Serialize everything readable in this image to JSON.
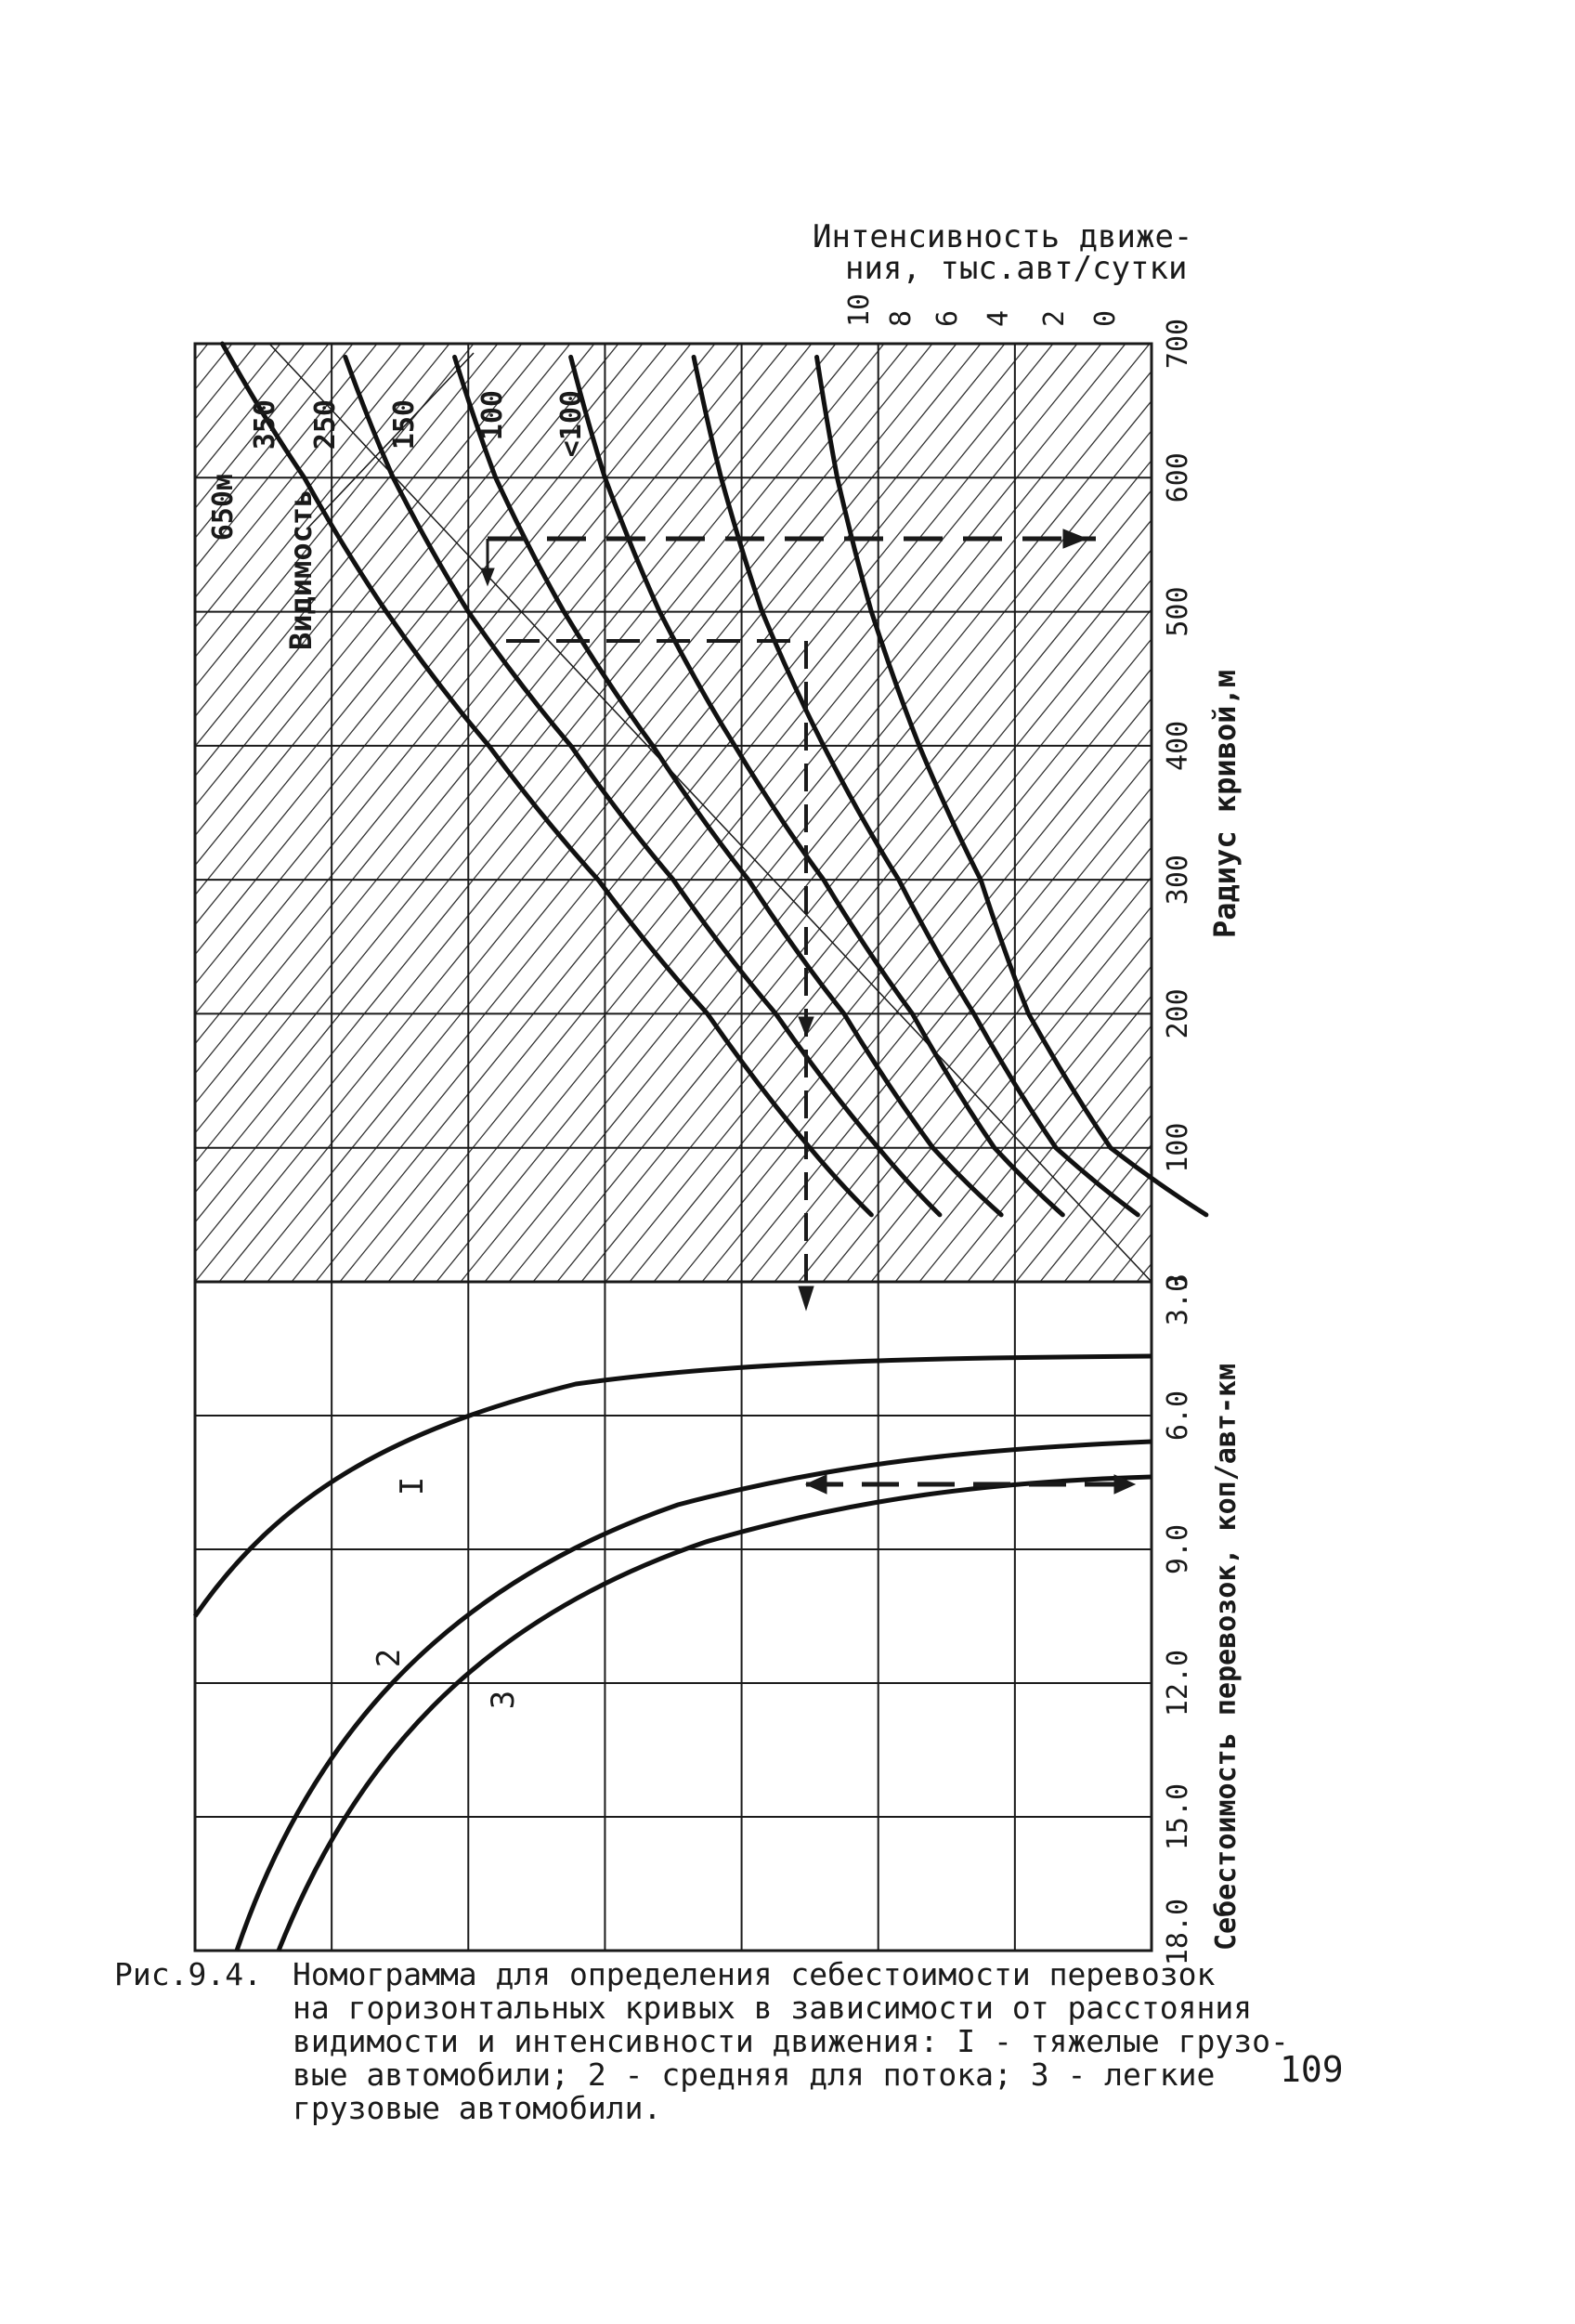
{
  "chart_data": [
    {
      "type": "line",
      "title": "",
      "right_axis_label": "Радиус кривой,м",
      "top_axis_label": "Интенсивность движе-\nния, тыс.авт/сутки",
      "radius_ticks": [
        700,
        600,
        500,
        400,
        300,
        200,
        100,
        3.0
      ],
      "intensity_ticks": [
        "10",
        "8",
        "6",
        "4",
        "2",
        "0"
      ],
      "visibility_label": "Видимость",
      "series": [
        {
          "name": "650м",
          "points": [
            [
              700,
              0.2
            ],
            [
              600,
              0.8
            ],
            [
              500,
              1.4
            ],
            [
              400,
              2.15
            ],
            [
              300,
              2.95
            ],
            [
              200,
              3.75
            ],
            [
              100,
              4.5
            ],
            [
              50,
              4.95
            ]
          ]
        },
        {
          "name": "350",
          "points": [
            [
              690,
              1.1
            ],
            [
              600,
              1.45
            ],
            [
              500,
              2.0
            ],
            [
              400,
              2.75
            ],
            [
              300,
              3.5
            ],
            [
              200,
              4.25
            ],
            [
              100,
              5.0
            ],
            [
              50,
              5.45
            ]
          ]
        },
        {
          "name": "250",
          "points": [
            [
              690,
              1.9
            ],
            [
              600,
              2.2
            ],
            [
              500,
              2.7
            ],
            [
              400,
              3.35
            ],
            [
              300,
              4.05
            ],
            [
              200,
              4.75
            ],
            [
              100,
              5.4
            ],
            [
              50,
              5.9
            ]
          ]
        },
        {
          "name": "150",
          "points": [
            [
              690,
              2.75
            ],
            [
              600,
              3.0
            ],
            [
              500,
              3.4
            ],
            [
              400,
              3.95
            ],
            [
              300,
              4.6
            ],
            [
              200,
              5.25
            ],
            [
              100,
              5.85
            ],
            [
              50,
              6.35
            ]
          ]
        },
        {
          "name": "100",
          "points": [
            [
              690,
              3.65
            ],
            [
              600,
              3.85
            ],
            [
              500,
              4.15
            ],
            [
              400,
              4.6
            ],
            [
              300,
              5.15
            ],
            [
              200,
              5.7
            ],
            [
              100,
              6.3
            ],
            [
              50,
              6.9
            ]
          ]
        },
        {
          "name": "<100",
          "points": [
            [
              690,
              4.55
            ],
            [
              600,
              4.7
            ],
            [
              500,
              4.95
            ],
            [
              400,
              5.3
            ],
            [
              300,
              5.75
            ],
            [
              200,
              6.1
            ],
            [
              100,
              6.7
            ],
            [
              50,
              7.4
            ]
          ]
        }
      ]
    },
    {
      "type": "line",
      "title": "",
      "right_axis_label": "Себестоимость перевозок, коп/авт-км",
      "cost_ticks": [
        "3.0",
        "6.0",
        "9.0",
        "12.0",
        "15.0",
        "18.0"
      ],
      "series": [
        {
          "name": "I",
          "points": [
            [
              6.0,
              0.0
            ],
            [
              7.5,
              3.0
            ],
            [
              10.0,
              3.2
            ]
          ]
        },
        {
          "name": "2",
          "points": [
            [
              6.0,
              0.0
            ],
            [
              8.0,
              3.5
            ],
            [
              11.0,
              4.5
            ],
            [
              16.0,
              7.0
            ]
          ]
        },
        {
          "name": "3",
          "points": [
            [
              6.0,
              0.5
            ],
            [
              9.0,
              4.0
            ],
            [
              12.0,
              5.5
            ],
            [
              17.0,
              7.0
            ]
          ]
        }
      ]
    }
  ],
  "caption": {
    "label": "Рис.9.4.",
    "text": "Номограмма для определения себестоимости перевозок\nна горизонтальных кривых в зависимости от расстояния\nвидимости и интенсивности движения: I - тяжелые грузо-\nвые автомобили; 2 - средняя для потока; 3 - легкие\nгрузовые автомобили."
  },
  "page_number": "109"
}
